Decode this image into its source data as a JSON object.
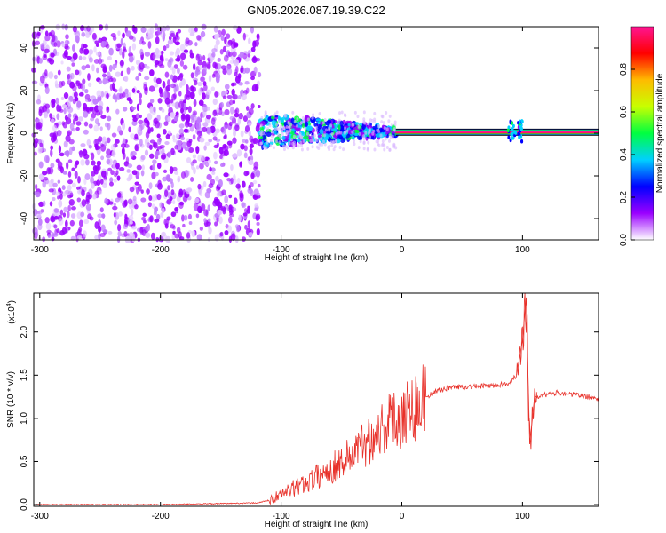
{
  "title": "GN05.2026.087.19.39.C22",
  "chart_data": [
    {
      "type": "heatmap",
      "panel": "spectrogram",
      "xlabel": "Height of straight line (km)",
      "ylabel": "Frequency (Hz)",
      "xlim": [
        -305,
        163
      ],
      "ylim": [
        -50,
        50
      ],
      "xticks": [
        -300,
        -200,
        -100,
        0,
        100
      ],
      "yticks": [
        -40,
        -20,
        0,
        20,
        40
      ],
      "colorbar": {
        "label": "Normalized spectral amplitude",
        "range": [
          0,
          1
        ],
        "ticks": [
          0.0,
          0.2,
          0.4,
          0.6,
          0.8
        ],
        "tick_labels": [
          "0.0",
          "0.2",
          "0.4",
          "0.6",
          "0.8"
        ],
        "colormap": [
          "#ffffff",
          "#9a00ff",
          "#0000ff",
          "#00d0ff",
          "#00ff40",
          "#c8ff00",
          "#ffbb00",
          "#ff0000",
          "#ff1493"
        ]
      },
      "regions": [
        {
          "name": "noise",
          "x_range": [
            -305,
            -118
          ],
          "freq_range": [
            -50,
            50
          ],
          "amplitude": 0.1
        },
        {
          "name": "plasma-onset",
          "x_range": [
            -118,
            -5
          ],
          "freq_range": [
            -5,
            7
          ],
          "amplitude": 0.35
        },
        {
          "name": "straight-line",
          "x_range": [
            -5,
            163
          ],
          "freq": 0.5,
          "amplitude": 0.95
        },
        {
          "name": "burst",
          "x_range": [
            88,
            100
          ],
          "freq_range": [
            -4,
            6
          ],
          "amplitude": 0.3
        }
      ]
    },
    {
      "type": "line",
      "panel": "snr",
      "xlabel": "Height of straight line (km)",
      "ylabel": "SNR (10 * v/v)",
      "scale_label": "(x10",
      "scale_exp": "4",
      "scale_close": ")",
      "xlim": [
        -305,
        163
      ],
      "ylim": [
        -0.02,
        2.45
      ],
      "xticks": [
        -300,
        -200,
        -100,
        0,
        100
      ],
      "yticks": [
        0.0,
        0.5,
        1.0,
        1.5,
        2.0
      ],
      "ytick_labels": [
        "0.0",
        "0.5",
        "1.0",
        "1.5",
        "2.0"
      ],
      "color": "#e8312a",
      "series": [
        {
          "name": "SNR",
          "x": [
            -305,
            -200,
            -120,
            -110,
            -100,
            -80,
            -60,
            -40,
            -20,
            0,
            20,
            30,
            40,
            60,
            80,
            90,
            95,
            100,
            103,
            106,
            110,
            130,
            163
          ],
          "y": [
            0.0,
            0.0,
            0.02,
            0.05,
            0.12,
            0.25,
            0.4,
            0.6,
            0.85,
            1.05,
            1.25,
            1.32,
            1.36,
            1.37,
            1.38,
            1.42,
            1.5,
            1.9,
            2.4,
            0.7,
            1.25,
            1.3,
            1.23
          ]
        }
      ]
    }
  ]
}
